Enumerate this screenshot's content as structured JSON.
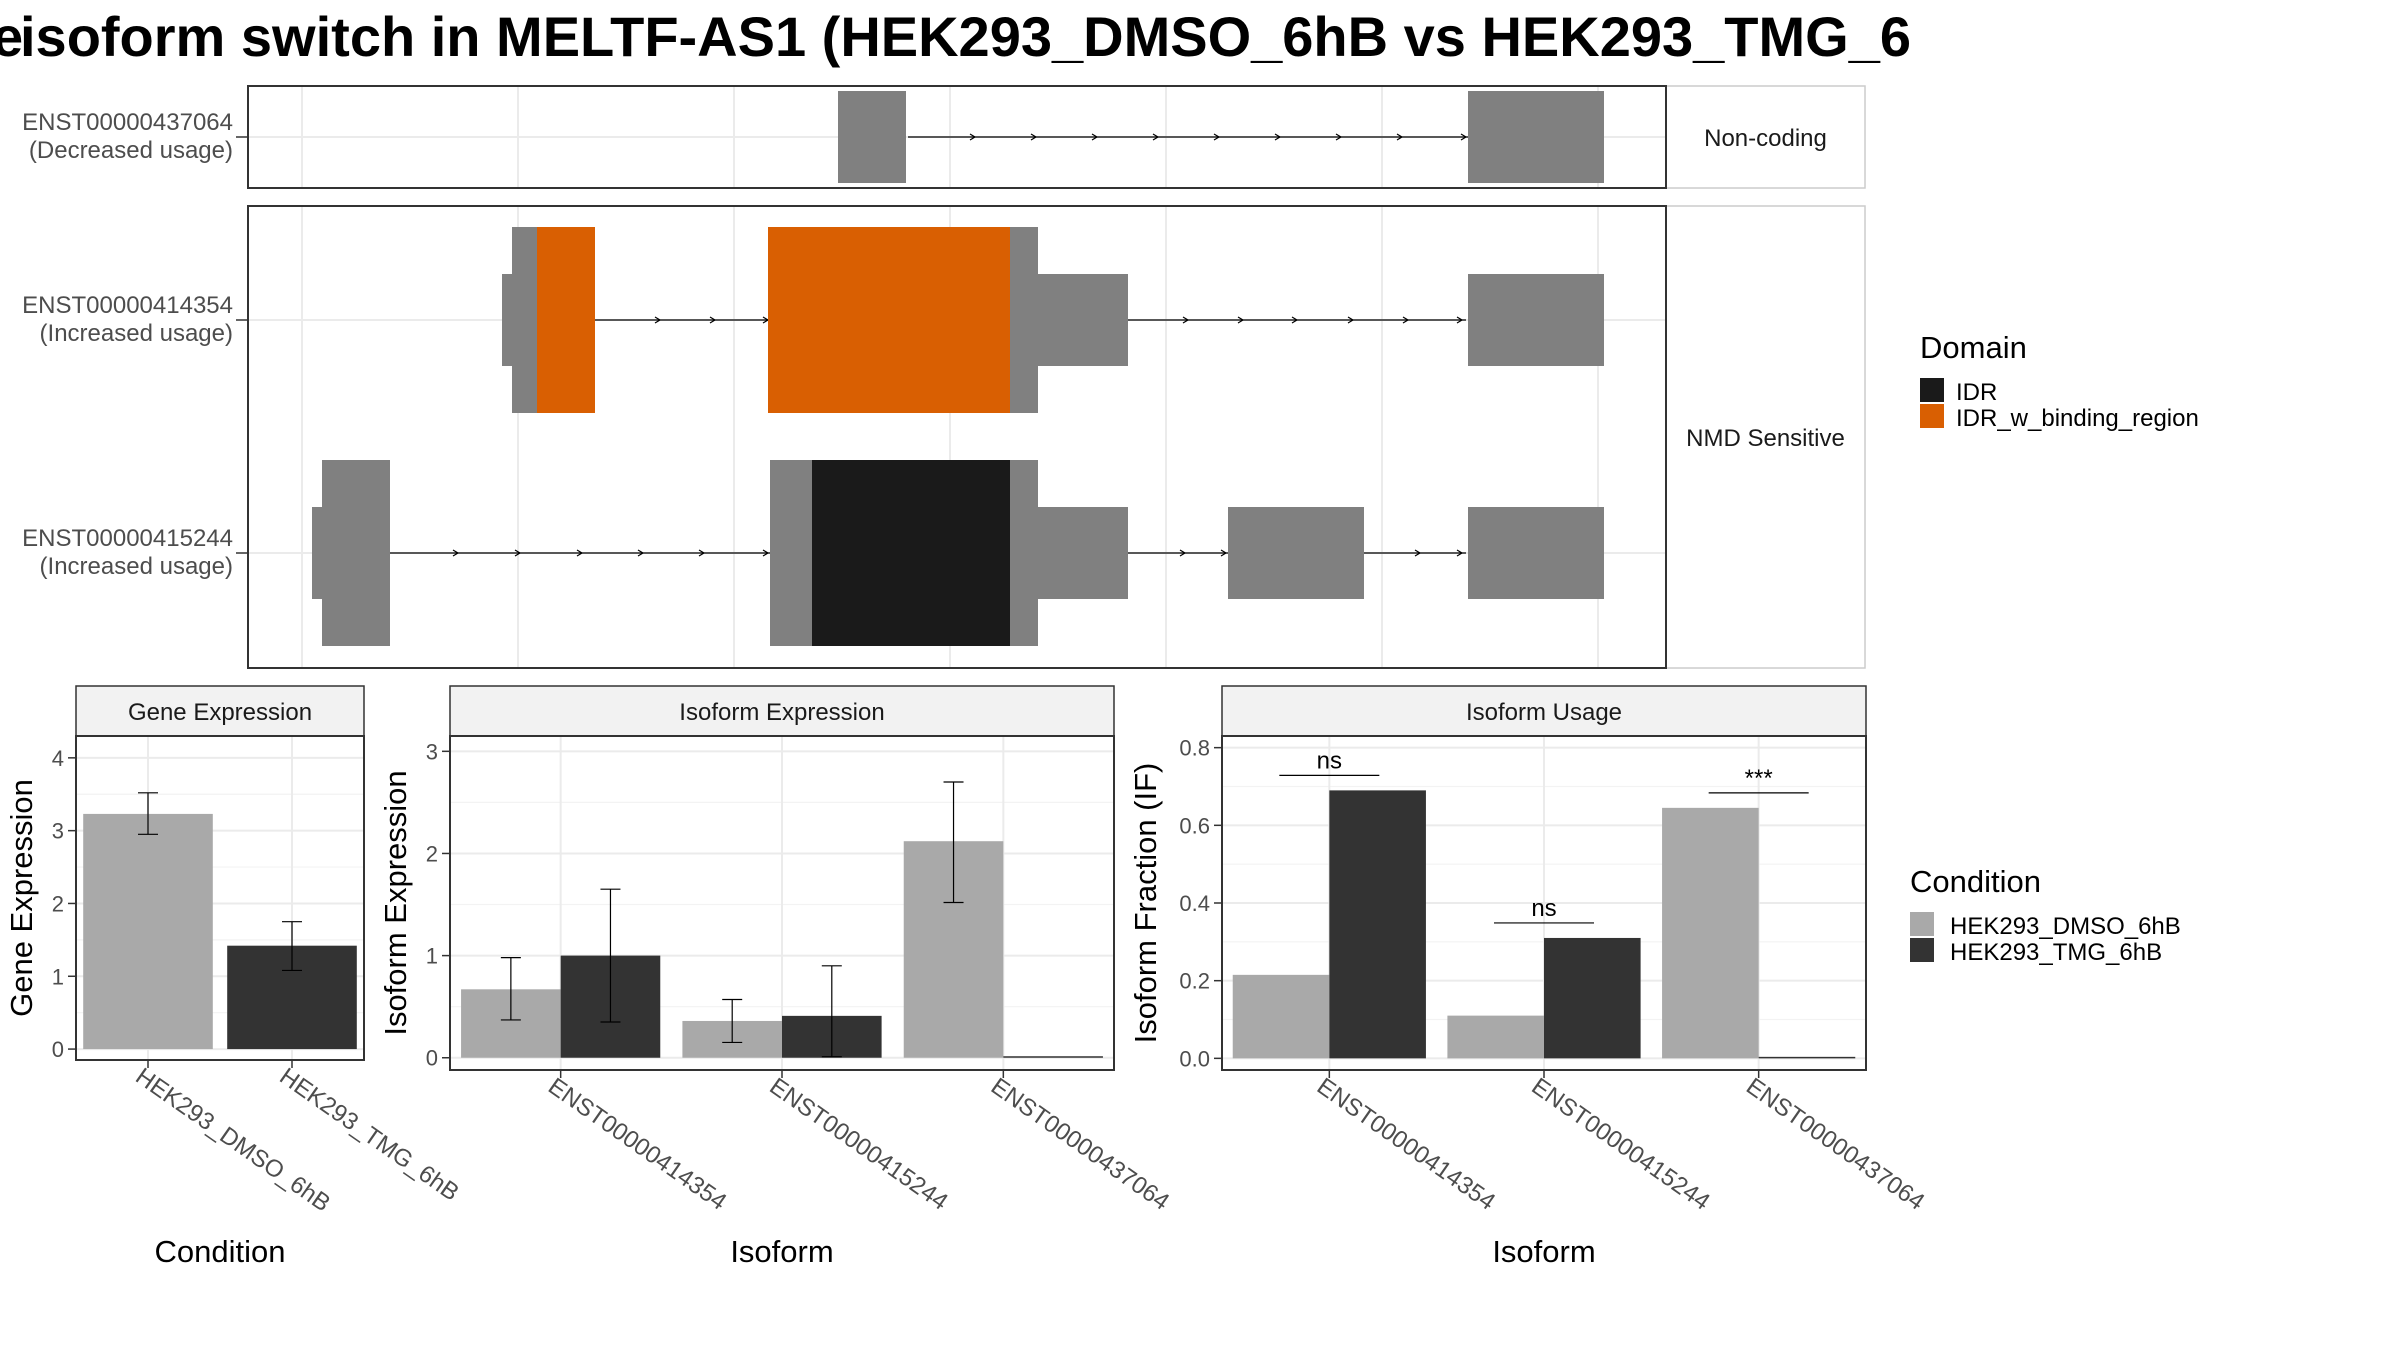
{
  "title": "isoform switch in MELTF-AS1 (HEK293_DMSO_6hB vs HEK293_TMG_6",
  "title_fragment": "e",
  "colors": {
    "exon": "#808080",
    "idr": "#1a1a1a",
    "idr_binding": "#d95f02",
    "dmso": "#a9a9a9",
    "tmg": "#333333",
    "grid": "#ebebeb",
    "strip": "#f2f2f2"
  },
  "structure": {
    "tracks": [
      {
        "id": "ENST00000437064",
        "usage": "(Decreased usage)",
        "group": "Non-coding"
      },
      {
        "id": "ENST00000414354",
        "usage": "(Increased usage)",
        "group": "NMD Sensitive"
      },
      {
        "id": "ENST00000415244",
        "usage": "(Increased usage)",
        "group": "NMD Sensitive"
      }
    ],
    "groups": [
      "Non-coding",
      "NMD Sensitive"
    ]
  },
  "legend_domain": {
    "title": "Domain",
    "items": [
      {
        "label": "IDR",
        "color": "#1a1a1a"
      },
      {
        "label": "IDR_w_binding_region",
        "color": "#d95f02"
      }
    ]
  },
  "legend_condition": {
    "title": "Condition",
    "items": [
      {
        "label": "HEK293_DMSO_6hB",
        "color": "#a9a9a9"
      },
      {
        "label": "HEK293_TMG_6hB",
        "color": "#333333"
      }
    ]
  },
  "chart_data": [
    {
      "type": "bar",
      "title": "Gene Expression",
      "xlabel": "Condition",
      "ylabel": "Gene Expression",
      "categories": [
        "HEK293_DMSO_6hB",
        "HEK293_TMG_6hB"
      ],
      "values": [
        3.23,
        1.42
      ],
      "errors": [
        [
          2.95,
          3.52
        ],
        [
          1.08,
          1.75
        ]
      ],
      "ylim": [
        -0.15,
        4.3
      ],
      "yticks": [
        0,
        1,
        2,
        3,
        4
      ]
    },
    {
      "type": "bar",
      "title": "Isoform Expression",
      "xlabel": "Isoform",
      "ylabel": "Isoform Expression",
      "categories": [
        "ENST00000414354",
        "ENST00000415244",
        "ENST00000437064"
      ],
      "series": [
        {
          "name": "HEK293_DMSO_6hB",
          "values": [
            0.67,
            0.36,
            2.12
          ],
          "errors": [
            [
              0.37,
              0.98
            ],
            [
              0.15,
              0.57
            ],
            [
              1.52,
              2.7
            ]
          ]
        },
        {
          "name": "HEK293_TMG_6hB",
          "values": [
            1.0,
            0.41,
            0.0
          ],
          "errors": [
            [
              0.35,
              1.65
            ],
            [
              0.01,
              0.9
            ],
            null
          ]
        }
      ],
      "ylim": [
        -0.12,
        3.15
      ],
      "yticks": [
        0,
        1,
        2,
        3
      ]
    },
    {
      "type": "bar",
      "title": "Isoform Usage",
      "xlabel": "Isoform",
      "ylabel": "Isoform Fraction (IF)",
      "categories": [
        "ENST00000414354",
        "ENST00000415244",
        "ENST00000437064"
      ],
      "series": [
        {
          "name": "HEK293_DMSO_6hB",
          "values": [
            0.215,
            0.11,
            0.645
          ]
        },
        {
          "name": "HEK293_TMG_6hB",
          "values": [
            0.69,
            0.31,
            0.0
          ]
        }
      ],
      "significance": [
        "ns",
        "ns",
        "***"
      ],
      "ylim": [
        -0.03,
        0.83
      ],
      "yticks": [
        0.0,
        0.2,
        0.4,
        0.6,
        0.8
      ],
      "ytick_labels": [
        "0.0",
        "0.2",
        "0.4",
        "0.6",
        "0.8"
      ]
    }
  ]
}
